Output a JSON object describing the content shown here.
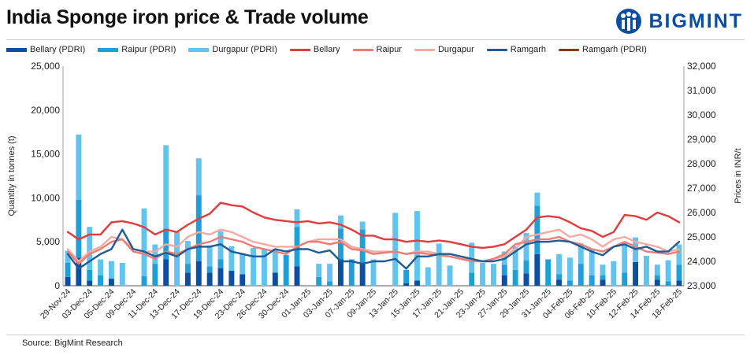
{
  "header": {
    "title": "India Sponge iron price & Trade volume"
  },
  "logo": {
    "text": "BIGMINT"
  },
  "footer": {
    "source": "Source: BigMint Research"
  },
  "colors": {
    "bellary_pdri": "#0b4ea2",
    "raipur_pdri": "#1e9fd8",
    "durgapur_pdri": "#62c4ee",
    "bellary": "#e03c3c",
    "raipur": "#ef7c72",
    "durgapur": "#f4aaa2",
    "ramgarh": "#1f5b94",
    "ramgarh_pdri": "#8b3a12"
  },
  "chart_data": {
    "type": "bar+line",
    "title": "India Sponge iron price & Trade volume",
    "ylabel": "Quantity in tonnes (t)",
    "y2label": "Prices in INR/t",
    "ylim": [
      0,
      25000
    ],
    "yticks": [
      "0",
      "5,000",
      "10,000",
      "15,000",
      "20,000",
      "25,000"
    ],
    "yticks_values": [
      0,
      5000,
      10000,
      15000,
      20000,
      25000
    ],
    "y2lim": [
      23000,
      32000
    ],
    "y2ticks": [
      "23,000",
      "24,000",
      "25,000",
      "26,000",
      "27,000",
      "28,000",
      "29,000",
      "30,000",
      "31,000",
      "32,000"
    ],
    "y2ticks_values": [
      23000,
      24000,
      25000,
      26000,
      27000,
      28000,
      29000,
      30000,
      31000,
      32000
    ],
    "x_labels": [
      "29-Nov-24",
      "03-Dec-24",
      "05-Dec-24",
      "09-Dec-24",
      "11-Dec-24",
      "13-Dec-24",
      "17-Dec-24",
      "19-Dec-24",
      "23-Dec-24",
      "26-Dec-24",
      "30-Dec-24",
      "01-Jan-25",
      "03-Jan-25",
      "07-Jan-25",
      "09-Jan-25",
      "13-Jan-25",
      "15-Jan-25",
      "17-Jan-25",
      "21-Jan-25",
      "23-Jan-25",
      "27-Jan-25",
      "29-Jan-25",
      "31-Jan-25",
      "04-Feb-25",
      "06-Feb-25",
      "10-Feb-25",
      "12-Feb-25",
      "14-Feb-25",
      "18-Feb-25"
    ],
    "n_points": 57,
    "legend": [
      {
        "name": "Bellary (PDRI)",
        "kind": "bar"
      },
      {
        "name": "Raipur (PDRI)",
        "kind": "bar"
      },
      {
        "name": "Durgapur (PDRI)",
        "kind": "bar"
      },
      {
        "name": "Bellary",
        "kind": "line"
      },
      {
        "name": "Raipur",
        "kind": "line"
      },
      {
        "name": "Durgapur",
        "kind": "line"
      },
      {
        "name": "Ramgarh",
        "kind": "line"
      },
      {
        "name": "Ramgarh (PDRI)",
        "kind": "line"
      }
    ],
    "bar_series": [
      {
        "name": "Bellary (PDRI)",
        "values": [
          1000,
          3200,
          600,
          0,
          800,
          0,
          0,
          0,
          0,
          3000,
          0,
          1500,
          2800,
          1500,
          2000,
          1700,
          1300,
          0,
          0,
          1500,
          0,
          2200,
          0,
          0,
          0,
          3000,
          0,
          2600,
          0,
          0,
          0,
          300,
          600,
          0,
          0,
          0,
          0,
          0,
          0,
          0,
          1200,
          0,
          1400,
          3600,
          0,
          700,
          0,
          0,
          0,
          700,
          0,
          0,
          2700,
          0,
          700,
          0,
          600
        ]
      },
      {
        "name": "Raipur (PDRI)",
        "values": [
          1600,
          6600,
          1200,
          1200,
          0,
          0,
          0,
          1100,
          2500,
          3500,
          0,
          1000,
          7500,
          700,
          1000,
          0,
          0,
          0,
          0,
          0,
          3500,
          4500,
          0,
          1000,
          500,
          3500,
          3000,
          3800,
          0,
          0,
          0,
          1500,
          0,
          0,
          0,
          0,
          0,
          1500,
          0,
          0,
          1200,
          1800,
          1500,
          5500,
          3000,
          600,
          600,
          2500,
          1200,
          500,
          0,
          1500,
          0,
          0,
          500,
          500,
          1800
        ]
      },
      {
        "name": "Durgapur (PDRI)",
        "values": [
          1400,
          7400,
          4900,
          1800,
          2000,
          2600,
          0,
          7700,
          2200,
          9500,
          6100,
          2600,
          4200,
          2400,
          3200,
          2800,
          2400,
          4300,
          4200,
          2700,
          0,
          2000,
          0,
          1500,
          2000,
          1500,
          0,
          900,
          3000,
          0,
          8300,
          0,
          7900,
          2100,
          4800,
          2300,
          0,
          3400,
          2600,
          2500,
          1500,
          2700,
          3100,
          1500,
          0,
          2300,
          2600,
          2300,
          2900,
          1200,
          2800,
          3300,
          2800,
          3400,
          1200,
          2400,
          2300
        ]
      }
    ],
    "line_series": [
      {
        "name": "Bellary",
        "values": [
          25200,
          24900,
          25100,
          25100,
          25600,
          25650,
          25550,
          25400,
          25100,
          25300,
          25200,
          25500,
          25750,
          25950,
          26400,
          26300,
          26250,
          26000,
          25800,
          25700,
          25650,
          25600,
          25650,
          25550,
          25600,
          25500,
          25300,
          25050,
          25050,
          24900,
          24900,
          24800,
          24850,
          24800,
          24850,
          24800,
          24700,
          24600,
          24550,
          24600,
          24700,
          25000,
          25300,
          25800,
          25850,
          25800,
          25600,
          25350,
          25250,
          25000,
          25200,
          25900,
          25850,
          25700,
          26000,
          25850,
          25600
        ]
      },
      {
        "name": "Raipur",
        "values": [
          24400,
          23900,
          24300,
          24500,
          24800,
          24900,
          24400,
          24300,
          24100,
          24400,
          24300,
          24500,
          24700,
          24800,
          25000,
          24900,
          24800,
          24600,
          24500,
          24400,
          24300,
          24600,
          24800,
          24800,
          24700,
          24800,
          24500,
          24450,
          24300,
          24350,
          24400,
          24300,
          24350,
          24300,
          24250,
          24200,
          24100,
          24000,
          24000,
          24100,
          24300,
          24700,
          24800,
          24900,
          24900,
          25000,
          24800,
          24700,
          24500,
          24400,
          24600,
          24800,
          24600,
          24400,
          24350,
          24300,
          24400
        ]
      },
      {
        "name": "Durgapur",
        "values": [
          24500,
          24000,
          24400,
          24600,
          25000,
          24900,
          24500,
          24400,
          24400,
          24700,
          24600,
          25000,
          25200,
          25100,
          25300,
          25200,
          25000,
          24800,
          24700,
          24600,
          24600,
          24600,
          24800,
          24900,
          24900,
          24900,
          24600,
          24500,
          24400,
          24400,
          24400,
          24300,
          24400,
          24400,
          24300,
          24200,
          24100,
          24100,
          24000,
          24100,
          24200,
          24500,
          25000,
          25100,
          25200,
          25300,
          25000,
          25100,
          24900,
          24600,
          24900,
          25000,
          24800,
          24700,
          24600,
          24400,
          24500
        ]
      },
      {
        "name": "Ramgarh",
        "values": [
          24300,
          23700,
          24000,
          24300,
          24500,
          25300,
          24500,
          24400,
          24200,
          24350,
          24200,
          24500,
          24600,
          24600,
          24700,
          24400,
          24300,
          24200,
          24200,
          24500,
          24400,
          24500,
          24500,
          24350,
          24450,
          24000,
          24000,
          23900,
          24000,
          24000,
          24100,
          23700,
          24200,
          24200,
          24300,
          24300,
          24200,
          24100,
          24000,
          24000,
          24100,
          24400,
          24700,
          24800,
          24800,
          24850,
          24800,
          24600,
          24400,
          24250,
          24600,
          24700,
          24500,
          24600,
          24400,
          24400,
          24800
        ]
      }
    ]
  }
}
